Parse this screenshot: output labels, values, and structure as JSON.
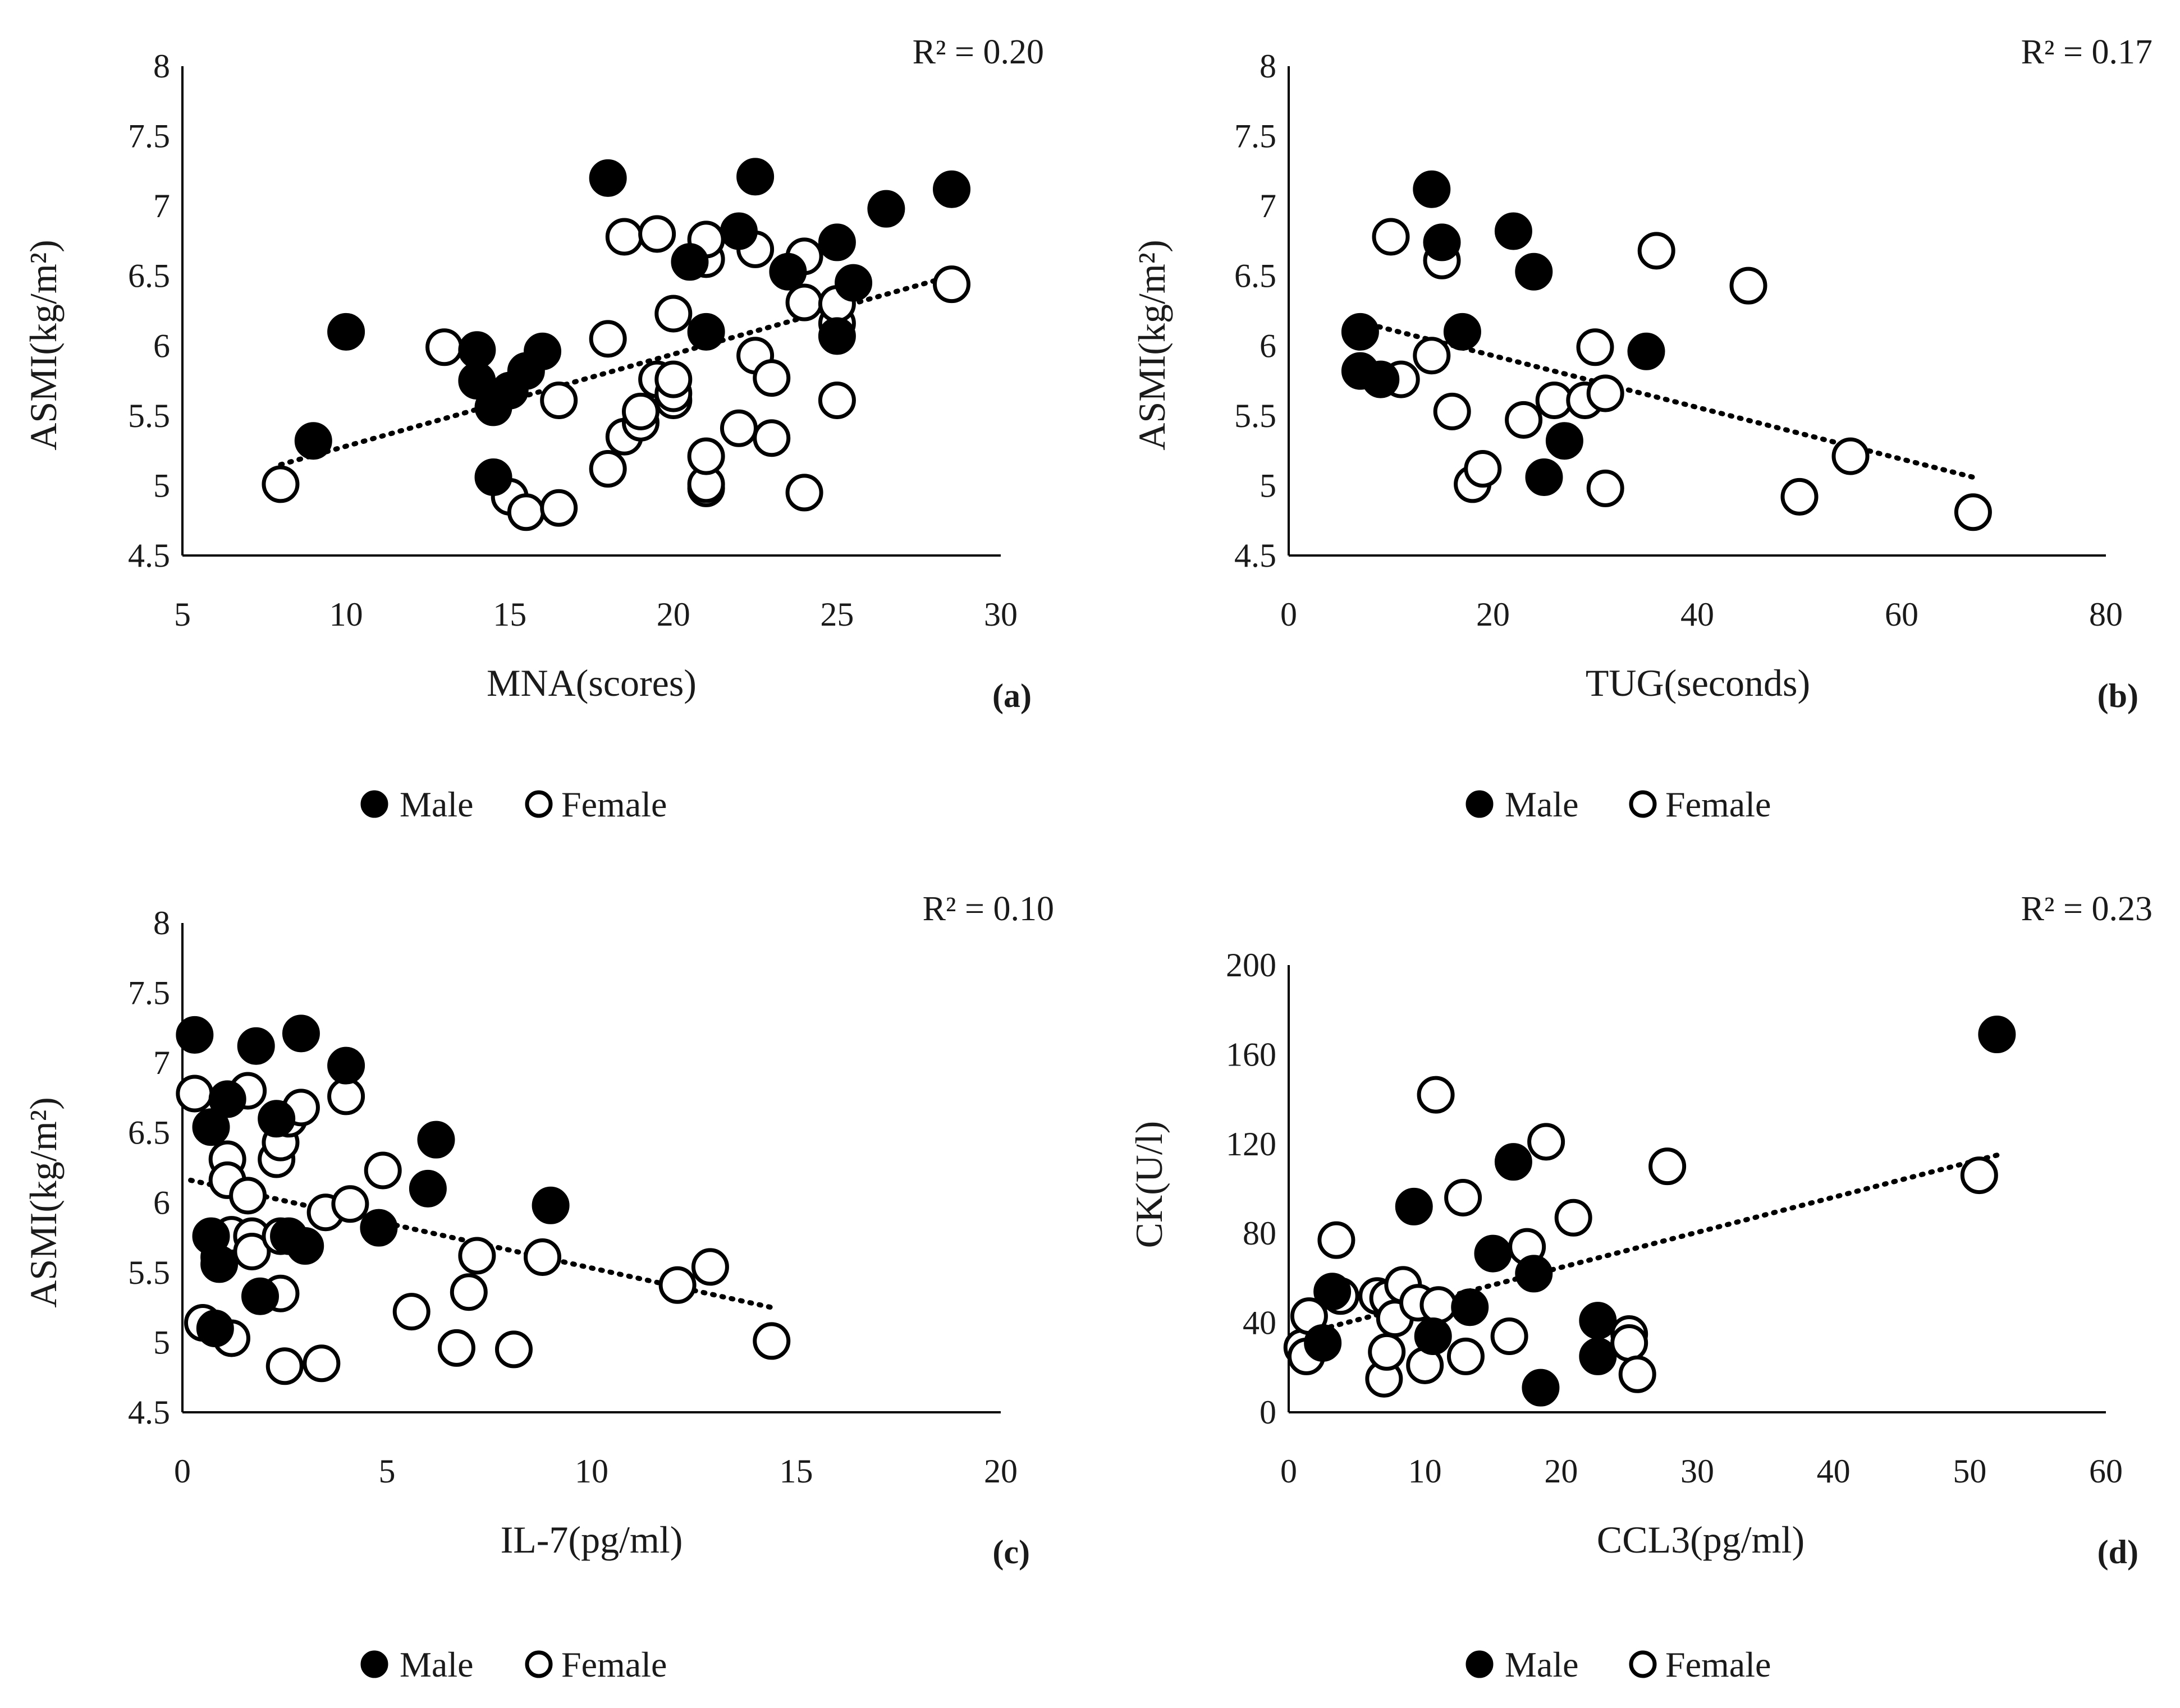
{
  "chart_data": [
    {
      "type": "scatter",
      "panel_label": "(a)",
      "r2_label": "R² = 0.20",
      "xlabel": "MNA(scores)",
      "ylabel": "ASMI(kg/m²)",
      "xlim": [
        5,
        30
      ],
      "ylim": [
        4.5,
        8
      ],
      "xticks": [
        5,
        10,
        15,
        20,
        25,
        30
      ],
      "yticks": [
        4.5,
        5,
        5.5,
        6,
        6.5,
        7,
        7.5,
        8
      ],
      "xtick_labels": [
        "5",
        "10",
        "15",
        "20",
        "25",
        "30"
      ],
      "ytick_labels": [
        "4.5",
        "5",
        "5.5",
        "6",
        "6.5",
        "7",
        "7.5",
        "8"
      ],
      "trendline": {
        "x": [
          8,
          28.5
        ],
        "y": [
          5.15,
          6.5
        ]
      },
      "legend": {
        "position": "bottom",
        "entries": [
          "Male",
          "Female"
        ]
      },
      "series": [
        {
          "name": "Male",
          "marker": "filled",
          "points": [
            [
              9,
              5.32
            ],
            [
              10,
              6.1
            ],
            [
              14,
              5.75
            ],
            [
              14,
              5.97
            ],
            [
              14.5,
              5.56
            ],
            [
              14.5,
              5.06
            ],
            [
              15,
              5.68
            ],
            [
              15.5,
              5.82
            ],
            [
              16,
              5.96
            ],
            [
              18,
              7.2
            ],
            [
              20.5,
              6.6
            ],
            [
              21,
              6.1
            ],
            [
              22,
              6.82
            ],
            [
              22.5,
              7.21
            ],
            [
              23.5,
              6.53
            ],
            [
              25,
              6.74
            ],
            [
              25,
              6.07
            ],
            [
              25.5,
              6.45
            ],
            [
              26.5,
              6.98
            ],
            [
              28.5,
              7.12
            ]
          ]
        },
        {
          "name": "Female",
          "marker": "hollow",
          "points": [
            [
              8,
              5.01
            ],
            [
              13,
              5.99
            ],
            [
              15,
              4.92
            ],
            [
              15.5,
              4.81
            ],
            [
              16.5,
              5.61
            ],
            [
              16.5,
              4.84
            ],
            [
              18,
              5.12
            ],
            [
              18,
              6.05
            ],
            [
              18.5,
              5.35
            ],
            [
              18.5,
              6.78
            ],
            [
              19,
              5.45
            ],
            [
              19,
              5.53
            ],
            [
              19.5,
              5.76
            ],
            [
              19.5,
              6.8
            ],
            [
              20,
              5.61
            ],
            [
              20,
              5.66
            ],
            [
              20,
              5.76
            ],
            [
              20,
              6.23
            ],
            [
              21,
              4.98
            ],
            [
              21,
              5.01
            ],
            [
              21,
              5.21
            ],
            [
              21,
              6.62
            ],
            [
              21,
              6.76
            ],
            [
              22,
              5.41
            ],
            [
              22.5,
              5.93
            ],
            [
              22.5,
              6.69
            ],
            [
              23,
              5.34
            ],
            [
              23,
              5.77
            ],
            [
              24,
              4.95
            ],
            [
              24,
              6.31
            ],
            [
              24,
              6.64
            ],
            [
              25,
              5.61
            ],
            [
              25,
              6.16
            ],
            [
              25,
              6.3
            ],
            [
              28.5,
              6.44
            ]
          ]
        }
      ]
    },
    {
      "type": "scatter",
      "panel_label": "(b)",
      "r2_label": "R² = 0.17",
      "xlabel": "TUG(seconds)",
      "ylabel": "ASMI(kg/m²)",
      "xlim": [
        0,
        80
      ],
      "ylim": [
        4.5,
        8
      ],
      "xticks": [
        0,
        20,
        40,
        60,
        80
      ],
      "yticks": [
        4.5,
        5,
        5.5,
        6,
        6.5,
        7,
        7.5,
        8
      ],
      "xtick_labels": [
        "0",
        "20",
        "40",
        "60",
        "80"
      ],
      "ytick_labels": [
        "4.5",
        "5",
        "5.5",
        "6",
        "6.5",
        "7",
        "7.5",
        "8"
      ],
      "trendline": {
        "x": [
          7,
          67
        ],
        "y": [
          6.17,
          5.06
        ]
      },
      "legend": {
        "position": "bottom",
        "entries": [
          "Male",
          "Female"
        ]
      },
      "series": [
        {
          "name": "Male",
          "marker": "filled",
          "points": [
            [
              7,
              6.1
            ],
            [
              7,
              5.82
            ],
            [
              9,
              5.76
            ],
            [
              14,
              7.12
            ],
            [
              15,
              6.74
            ],
            [
              17,
              6.1
            ],
            [
              22,
              6.82
            ],
            [
              24,
              6.53
            ],
            [
              25,
              5.06
            ],
            [
              27,
              5.32
            ],
            [
              35,
              5.96
            ]
          ]
        },
        {
          "name": "Female",
          "marker": "hollow",
          "points": [
            [
              10,
              6.78
            ],
            [
              11,
              5.76
            ],
            [
              14,
              5.93
            ],
            [
              15,
              6.61
            ],
            [
              16,
              5.53
            ],
            [
              18,
              5.01
            ],
            [
              19,
              5.12
            ],
            [
              23,
              5.47
            ],
            [
              26,
              5.61
            ],
            [
              29,
              5.61
            ],
            [
              30,
              5.99
            ],
            [
              31,
              5.66
            ],
            [
              31,
              4.98
            ],
            [
              36,
              6.68
            ],
            [
              45,
              6.43
            ],
            [
              50,
              4.92
            ],
            [
              55,
              5.21
            ],
            [
              67,
              4.81
            ]
          ]
        }
      ]
    },
    {
      "type": "scatter",
      "panel_label": "(c)",
      "r2_label": "R² = 0.10",
      "xlabel": "IL-7(pg/ml)",
      "ylabel": "ASMI(kg/m²)",
      "xlim": [
        0,
        20
      ],
      "ylim": [
        4.5,
        8
      ],
      "xticks": [
        0,
        5,
        10,
        15,
        20
      ],
      "yticks": [
        4.5,
        5,
        5.5,
        6,
        6.5,
        7,
        7.5,
        8
      ],
      "xtick_labels": [
        "0",
        "5",
        "10",
        "15",
        "20"
      ],
      "ytick_labels": [
        "4.5",
        "5",
        "5.5",
        "6",
        "6.5",
        "7",
        "7.5",
        "8"
      ],
      "trendline": {
        "x": [
          0.2,
          14.4
        ],
        "y": [
          6.16,
          5.25
        ]
      },
      "legend": {
        "position": "bottom",
        "entries": [
          "Male",
          "Female"
        ]
      },
      "series": [
        {
          "name": "Male",
          "marker": "filled",
          "points": [
            [
              0.3,
              7.2
            ],
            [
              0.7,
              6.54
            ],
            [
              0.7,
              5.76
            ],
            [
              0.8,
              5.1
            ],
            [
              0.9,
              5.56
            ],
            [
              1.1,
              6.74
            ],
            [
              1.8,
              7.12
            ],
            [
              1.9,
              5.33
            ],
            [
              2.3,
              6.6
            ],
            [
              2.6,
              5.76
            ],
            [
              2.9,
              7.21
            ],
            [
              3,
              5.69
            ],
            [
              4,
              6.98
            ],
            [
              4.8,
              5.82
            ],
            [
              6,
              6.1
            ],
            [
              6.2,
              6.45
            ],
            [
              9,
              5.98
            ]
          ]
        },
        {
          "name": "Female",
          "marker": "hollow",
          "points": [
            [
              0.3,
              6.78
            ],
            [
              0.5,
              5.14
            ],
            [
              0.9,
              5.61
            ],
            [
              1.1,
              6.31
            ],
            [
              1.1,
              6.16
            ],
            [
              1.2,
              5.77
            ],
            [
              1.2,
              5.03
            ],
            [
              1.6,
              6.8
            ],
            [
              1.6,
              6.05
            ],
            [
              1.7,
              5.76
            ],
            [
              1.7,
              5.65
            ],
            [
              2.3,
              6.31
            ],
            [
              2.4,
              6.43
            ],
            [
              2.4,
              5.76
            ],
            [
              2.4,
              5.35
            ],
            [
              2.5,
              4.83
            ],
            [
              2.6,
              6.6
            ],
            [
              2.9,
              6.68
            ],
            [
              3.4,
              4.85
            ],
            [
              3.5,
              5.93
            ],
            [
              4,
              6.76
            ],
            [
              4.1,
              5.99
            ],
            [
              4.9,
              6.23
            ],
            [
              5.6,
              5.22
            ],
            [
              6.7,
              4.96
            ],
            [
              7,
              5.36
            ],
            [
              7.2,
              5.62
            ],
            [
              8.1,
              4.95
            ],
            [
              8.8,
              5.61
            ],
            [
              12.1,
              5.41
            ],
            [
              12.9,
              5.54
            ],
            [
              14.4,
              5.01
            ]
          ]
        }
      ]
    },
    {
      "type": "scatter",
      "panel_label": "(d)",
      "r2_label": "R² = 0.23",
      "xlabel": "CCL3(pg/ml)",
      "ylabel": "CK(U/l)",
      "xlim": [
        0,
        60
      ],
      "ylim": [
        0,
        200
      ],
      "xticks": [
        0,
        10,
        20,
        30,
        40,
        50,
        60
      ],
      "yticks": [
        0,
        40,
        80,
        120,
        160,
        200
      ],
      "xtick_labels": [
        "0",
        "10",
        "20",
        "30",
        "40",
        "50",
        "60"
      ],
      "ytick_labels": [
        "0",
        "40",
        "80",
        "120",
        "160",
        "200"
      ],
      "trendline": {
        "x": [
          1,
          52
        ],
        "y": [
          35,
          115
        ]
      },
      "legend": {
        "position": "bottom",
        "entries": [
          "Male",
          "Female"
        ]
      },
      "series": [
        {
          "name": "Male",
          "marker": "filled",
          "points": [
            [
              2.5,
              31
            ],
            [
              3.2,
              54
            ],
            [
              9.2,
              92
            ],
            [
              10.6,
              34
            ],
            [
              13.3,
              47
            ],
            [
              15,
              71
            ],
            [
              16.5,
              112
            ],
            [
              18,
              62
            ],
            [
              18.5,
              11
            ],
            [
              22.7,
              41
            ],
            [
              22.7,
              25
            ],
            [
              52,
              169
            ]
          ]
        },
        {
          "name": "Female",
          "marker": "hollow",
          "points": [
            [
              1,
              29
            ],
            [
              1.3,
              25
            ],
            [
              1.5,
              43
            ],
            [
              3.5,
              77
            ],
            [
              3.8,
              52
            ],
            [
              6.5,
              52
            ],
            [
              7,
              15
            ],
            [
              7.2,
              27
            ],
            [
              7.3,
              51
            ],
            [
              7.8,
              42
            ],
            [
              8.4,
              57
            ],
            [
              9.5,
              49
            ],
            [
              10,
              21
            ],
            [
              10.8,
              142
            ],
            [
              11,
              48
            ],
            [
              12.8,
              96
            ],
            [
              13,
              25
            ],
            [
              16.2,
              34
            ],
            [
              17.5,
              74
            ],
            [
              18.9,
              121
            ],
            [
              20.9,
              87
            ],
            [
              25,
              35
            ],
            [
              25,
              31
            ],
            [
              25.6,
              17
            ],
            [
              27.8,
              110
            ],
            [
              50.7,
              106
            ]
          ]
        }
      ]
    }
  ]
}
